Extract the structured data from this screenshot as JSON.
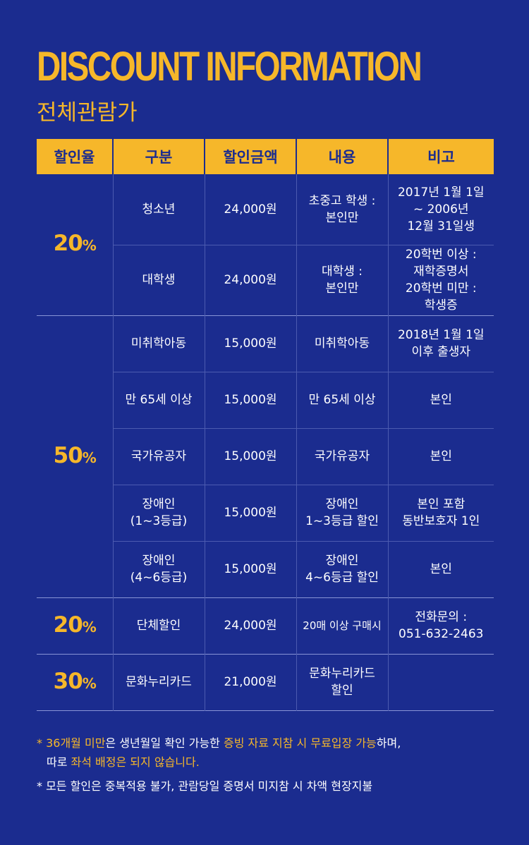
{
  "title": "DISCOUNT INFORMATION",
  "subtitle": "전체관람가",
  "columns": [
    "할인율",
    "구분",
    "할인금액",
    "내용",
    "비고"
  ],
  "percent_sign": "%",
  "groups": [
    {
      "rate": "20",
      "rows": [
        {
          "category": [
            "청소년"
          ],
          "amount": "24,000원",
          "content": [
            "초중고 학생 :",
            "본인만"
          ],
          "note": [
            "2017년 1월 1일",
            "~ 2006년",
            "12월 31일생"
          ]
        },
        {
          "category": [
            "대학생"
          ],
          "amount": "24,000원",
          "content": [
            "대학생 :",
            "본인만"
          ],
          "note": [
            "20학번 이상 :",
            "재학증명서",
            "20학번 미만 :",
            "학생증"
          ]
        }
      ]
    },
    {
      "rate": "50",
      "rows": [
        {
          "category": [
            "미취학아동"
          ],
          "amount": "15,000원",
          "content": [
            "미취학아동"
          ],
          "note": [
            "2018년 1월 1일",
            "이후 출생자"
          ]
        },
        {
          "category": [
            "만 65세 이상"
          ],
          "amount": "15,000원",
          "content": [
            "만 65세 이상"
          ],
          "note": [
            "본인"
          ]
        },
        {
          "category": [
            "국가유공자"
          ],
          "amount": "15,000원",
          "content": [
            "국가유공자"
          ],
          "note": [
            "본인"
          ]
        },
        {
          "category": [
            "장애인",
            "(1~3등급)"
          ],
          "amount": "15,000원",
          "content": [
            "장애인",
            "1~3등급 할인"
          ],
          "note": [
            "본인 포함",
            "동반보호자 1인"
          ]
        },
        {
          "category": [
            "장애인",
            "(4~6등급)"
          ],
          "amount": "15,000원",
          "content": [
            "장애인",
            "4~6등급 할인"
          ],
          "note": [
            "본인"
          ]
        }
      ]
    },
    {
      "rate": "20",
      "rows": [
        {
          "category": [
            "단체할인"
          ],
          "amount": "24,000원",
          "content": [
            "20매 이상 구매시"
          ],
          "note": [
            "전화문의 :",
            "051-632-2463"
          ]
        }
      ]
    },
    {
      "rate": "30",
      "rows": [
        {
          "category": [
            "문화누리카드"
          ],
          "amount": "21,000원",
          "content": [
            "문화누리카드",
            "할인"
          ],
          "note": []
        }
      ]
    }
  ],
  "notes": {
    "n1_star": "*",
    "n1_a": "36개월 미만",
    "n1_b": "은 생년월일 확인 가능한 ",
    "n1_c": "증빙 자료 지참 시 무료입장 가능",
    "n1_d": "하며,",
    "n1_e": "따로 ",
    "n1_f": "좌석 배정은 되지 않습니다.",
    "n2": "* 모든 할인은 중복적용 불가, 관람당일 증명서 미지참 시 차액 현장지불"
  }
}
